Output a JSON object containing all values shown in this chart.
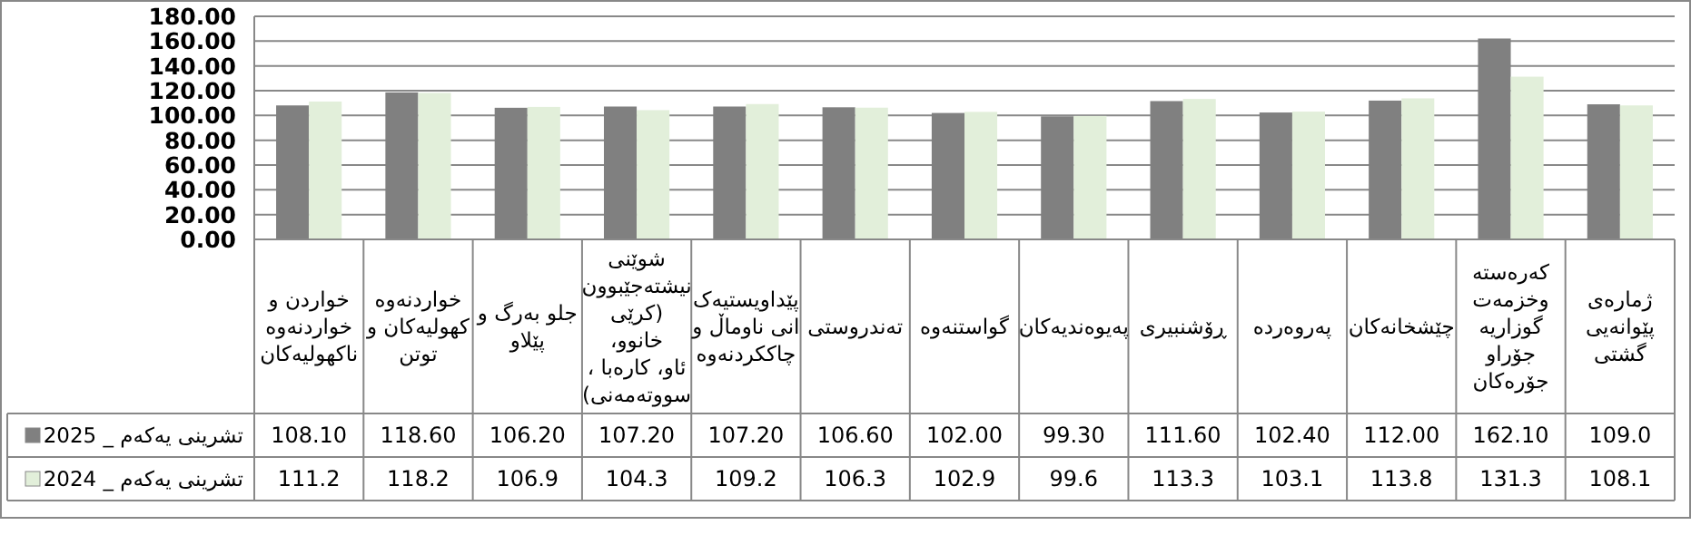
{
  "chart_data": {
    "type": "bar",
    "categories": [
      "خواردن  و\nخواردنەوە\nناکهولیەکان",
      "خواردنەوە\nکهولیەکان و\nتوتن",
      "جلو بەرگ و\nپێلاو",
      "شوێنی\nنیشتەجێبوون\n(کرێی\nخانوو،\nئاو، کارەبا ،\nسووتەمەنی)",
      "پێداویستیەک\nانی ناوماڵ و\nچاککردنەوە",
      "تەندروستی",
      "گواستنەوە",
      "پەیوەندیەکان",
      "ڕۆشنبیری",
      "پەروەردە",
      "چێشخانەکان",
      "کەرەستە\nوخزمەت\nگوزاریە\nجۆراو\nجۆرەکان",
      "ژمارەی\nپێوانەیی\nگشتی"
    ],
    "series": [
      {
        "name": "تشرینی یەکەم _ 2025",
        "color": "#808080",
        "values": [
          108.1,
          118.6,
          106.2,
          107.2,
          107.2,
          106.6,
          102.0,
          99.3,
          111.6,
          102.4,
          112.0,
          162.1,
          109.0
        ],
        "value_labels": [
          "108.10",
          "118.60",
          "106.20",
          "107.20",
          "107.20",
          "106.60",
          "102.00",
          "99.30",
          "111.60",
          "102.40",
          "112.00",
          "162.10",
          "109.0"
        ]
      },
      {
        "name": "تشرینی یەکەم _ 2024",
        "color": "#e2efda",
        "values": [
          111.2,
          118.2,
          106.9,
          104.3,
          109.2,
          106.3,
          102.9,
          99.6,
          113.3,
          103.1,
          113.8,
          131.3,
          108.1
        ],
        "value_labels": [
          "111.2",
          "118.2",
          "106.9",
          "104.3",
          "109.2",
          "106.3",
          "102.9",
          "99.6",
          "113.3",
          "103.1",
          "113.8",
          "131.3",
          "108.1"
        ]
      }
    ],
    "ylim": [
      0,
      180
    ],
    "yticks": [
      {
        "value": 0,
        "label": "0.00"
      },
      {
        "value": 20,
        "label": "20.00"
      },
      {
        "value": 40,
        "label": "40.00"
      },
      {
        "value": 60,
        "label": "60.00"
      },
      {
        "value": 80,
        "label": "80.00"
      },
      {
        "value": 100,
        "label": "100.00"
      },
      {
        "value": 120,
        "label": "120.00"
      },
      {
        "value": 140,
        "label": "140.00"
      },
      {
        "value": 160,
        "label": "160.00"
      },
      {
        "value": 180,
        "label": "180.00"
      }
    ],
    "grid": "y",
    "legend": "bottom left"
  }
}
